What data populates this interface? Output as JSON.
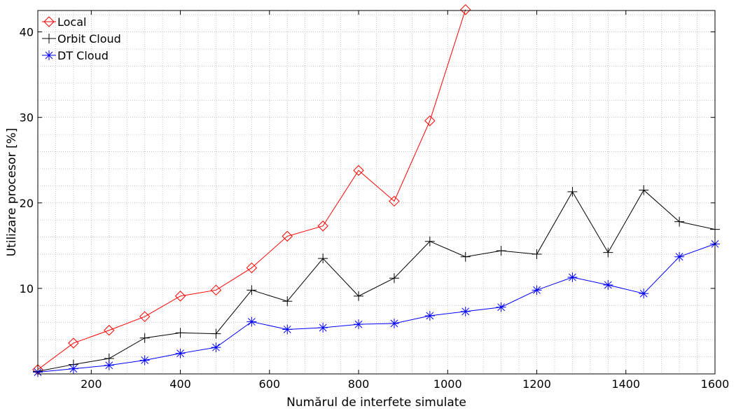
{
  "chart_data": {
    "type": "line",
    "title": "",
    "xlabel": "Numărul de interfete simulate",
    "ylabel": "Utilizare procesor [%]",
    "xlim": [
      80,
      1600
    ],
    "ylim": [
      0,
      42.5
    ],
    "xticks": [
      200,
      400,
      600,
      800,
      1000,
      1200,
      1400,
      1600
    ],
    "yticks": [
      10,
      20,
      30,
      40
    ],
    "grid": true,
    "legend_position": "top-left",
    "series": [
      {
        "name": "Local",
        "color": "#ff0000",
        "marker": "diamond",
        "x": [
          80,
          160,
          240,
          320,
          400,
          480,
          560,
          640,
          720,
          800,
          880,
          960,
          1040
        ],
        "y": [
          0.5,
          3.6,
          5.1,
          6.7,
          9.1,
          9.8,
          12.4,
          16.1,
          17.3,
          23.8,
          20.2,
          29.6,
          42.6
        ]
      },
      {
        "name": "Orbit Cloud",
        "color": "#000000",
        "marker": "plus",
        "x": [
          80,
          160,
          240,
          320,
          400,
          480,
          560,
          640,
          720,
          800,
          880,
          960,
          1040,
          1120,
          1200,
          1280,
          1360,
          1440,
          1520,
          1600
        ],
        "y": [
          0.3,
          1.1,
          1.8,
          4.2,
          4.8,
          4.7,
          9.8,
          8.5,
          13.5,
          9.1,
          11.2,
          15.5,
          13.7,
          14.4,
          14.0,
          21.3,
          14.2,
          21.5,
          17.8,
          16.9
        ]
      },
      {
        "name": "DT Cloud",
        "color": "#0000ff",
        "marker": "asterisk",
        "x": [
          80,
          160,
          240,
          320,
          400,
          480,
          560,
          640,
          720,
          800,
          880,
          960,
          1040,
          1120,
          1200,
          1280,
          1360,
          1440,
          1520,
          1600
        ],
        "y": [
          0.2,
          0.6,
          1.0,
          1.6,
          2.4,
          3.1,
          6.1,
          5.2,
          5.4,
          5.8,
          5.9,
          6.8,
          7.3,
          7.8,
          9.8,
          11.3,
          10.4,
          9.4,
          13.7,
          15.2
        ]
      }
    ]
  }
}
